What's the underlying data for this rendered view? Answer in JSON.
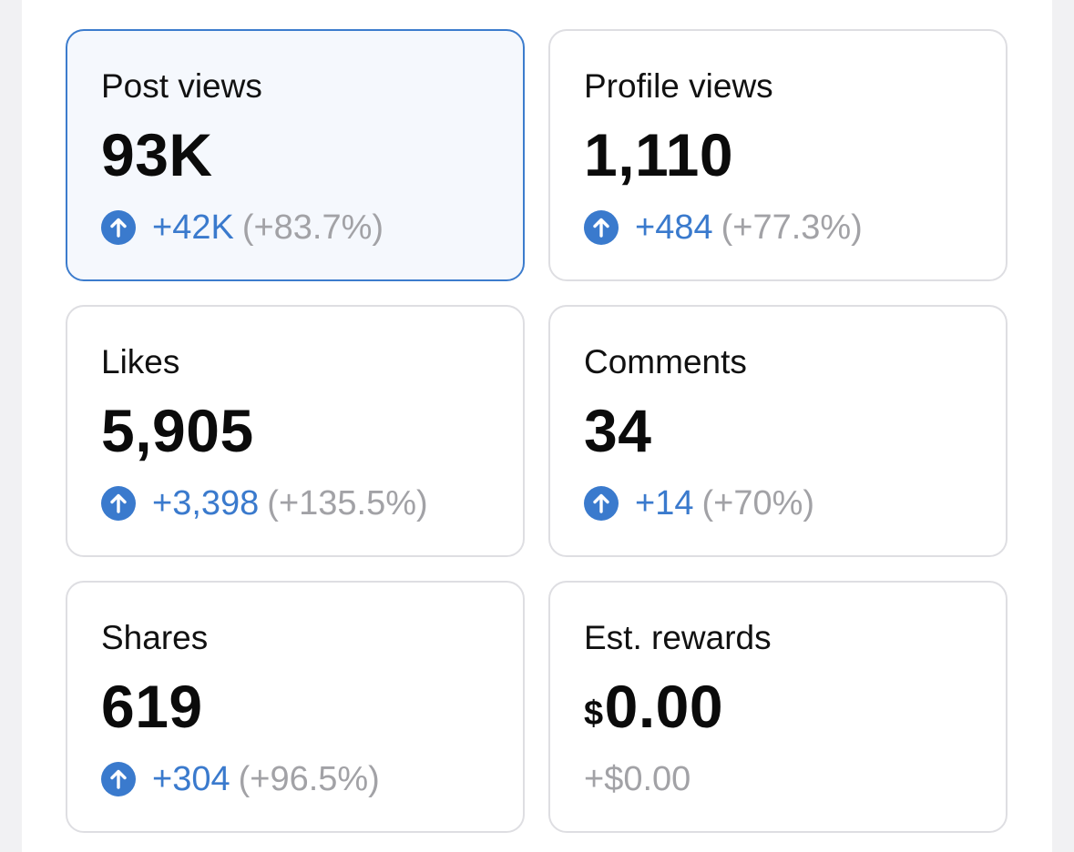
{
  "accent_color": "#3a7acd",
  "muted_color": "#a2a2a6",
  "icon": "arrow-up-circle-icon",
  "cards": [
    {
      "label": "Post views",
      "value": "93K",
      "delta": "+42K",
      "pct": "(+83.7%)",
      "selected": true
    },
    {
      "label": "Profile views",
      "value": "1,110",
      "delta": "+484",
      "pct": "(+77.3%)"
    },
    {
      "label": "Likes",
      "value": "5,905",
      "delta": "+3,398",
      "pct": "(+135.5%)"
    },
    {
      "label": "Comments",
      "value": "34",
      "delta": "+14",
      "pct": "(+70%)"
    },
    {
      "label": "Shares",
      "value": "619",
      "delta": "+304",
      "pct": "(+96.5%)"
    },
    {
      "label": "Est. rewards",
      "currency": "$",
      "value": "0.00",
      "delta": "+$0.00"
    }
  ]
}
